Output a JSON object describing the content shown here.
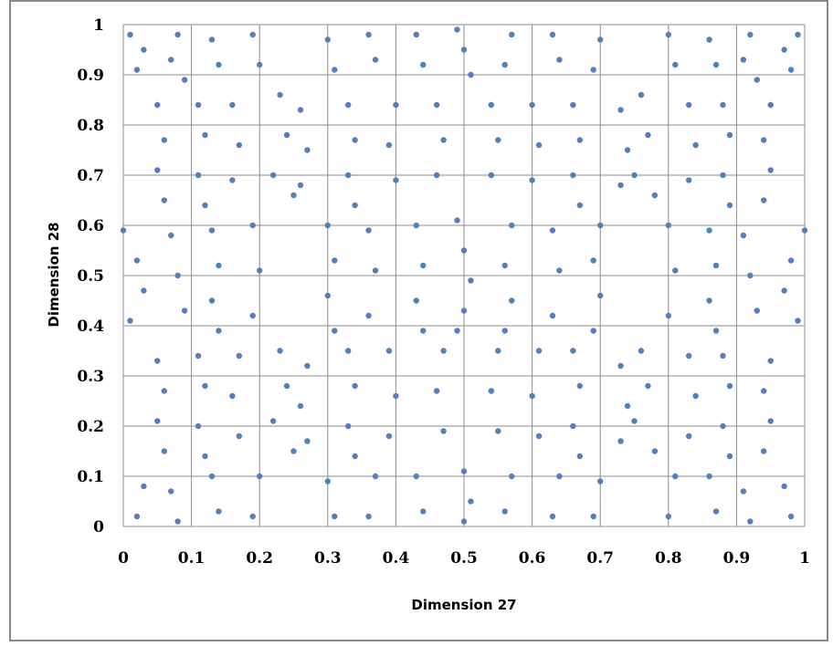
{
  "chart_data": {
    "type": "scatter",
    "title": "",
    "xlabel": "Dimension  27",
    "ylabel": "Dimension 28",
    "xlim": [
      0,
      1
    ],
    "ylim": [
      0,
      1
    ],
    "xticks": [
      "0",
      "0.1",
      "0.2",
      "0.3",
      "0.4",
      "0.5",
      "0.6",
      "0.7",
      "0.8",
      "0.9",
      "1"
    ],
    "yticks": [
      "0",
      "0.1",
      "0.2",
      "0.3",
      "0.4",
      "0.5",
      "0.6",
      "0.7",
      "0.8",
      "0.9",
      "1"
    ],
    "grid": true,
    "legend": "none",
    "colors": {
      "point": "#4f81bd",
      "grid": "#8c8c8c",
      "frame": "#888888"
    },
    "series": [
      {
        "values_description_omitted": false,
        "points": [
          [
            0.01,
            0.98
          ],
          [
            0.03,
            0.95
          ],
          [
            0.02,
            0.91
          ],
          [
            0.0,
            0.59
          ],
          [
            0.02,
            0.53
          ],
          [
            0.03,
            0.47
          ],
          [
            0.01,
            0.41
          ],
          [
            0.02,
            0.02
          ],
          [
            0.03,
            0.08
          ],
          [
            0.05,
            0.84
          ],
          [
            0.06,
            0.77
          ],
          [
            0.05,
            0.71
          ],
          [
            0.06,
            0.65
          ],
          [
            0.05,
            0.33
          ],
          [
            0.06,
            0.27
          ],
          [
            0.05,
            0.21
          ],
          [
            0.06,
            0.15
          ],
          [
            0.08,
            0.98
          ],
          [
            0.07,
            0.93
          ],
          [
            0.09,
            0.89
          ],
          [
            0.07,
            0.58
          ],
          [
            0.08,
            0.5
          ],
          [
            0.09,
            0.43
          ],
          [
            0.07,
            0.07
          ],
          [
            0.08,
            0.01
          ],
          [
            0.11,
            0.84
          ],
          [
            0.12,
            0.78
          ],
          [
            0.11,
            0.7
          ],
          [
            0.12,
            0.64
          ],
          [
            0.11,
            0.34
          ],
          [
            0.12,
            0.28
          ],
          [
            0.11,
            0.2
          ],
          [
            0.12,
            0.14
          ],
          [
            0.13,
            0.97
          ],
          [
            0.14,
            0.92
          ],
          [
            0.13,
            0.59
          ],
          [
            0.14,
            0.52
          ],
          [
            0.13,
            0.45
          ],
          [
            0.14,
            0.39
          ],
          [
            0.13,
            0.1
          ],
          [
            0.14,
            0.03
          ],
          [
            0.16,
            0.84
          ],
          [
            0.17,
            0.76
          ],
          [
            0.16,
            0.69
          ],
          [
            0.17,
            0.34
          ],
          [
            0.16,
            0.26
          ],
          [
            0.17,
            0.18
          ],
          [
            0.19,
            0.98
          ],
          [
            0.2,
            0.92
          ],
          [
            0.19,
            0.6
          ],
          [
            0.2,
            0.51
          ],
          [
            0.19,
            0.42
          ],
          [
            0.2,
            0.1
          ],
          [
            0.19,
            0.02
          ],
          [
            0.23,
            0.86
          ],
          [
            0.24,
            0.78
          ],
          [
            0.22,
            0.7
          ],
          [
            0.25,
            0.66
          ],
          [
            0.23,
            0.35
          ],
          [
            0.24,
            0.28
          ],
          [
            0.22,
            0.21
          ],
          [
            0.25,
            0.15
          ],
          [
            0.26,
            0.83
          ],
          [
            0.27,
            0.75
          ],
          [
            0.26,
            0.68
          ],
          [
            0.27,
            0.32
          ],
          [
            0.26,
            0.24
          ],
          [
            0.27,
            0.17
          ],
          [
            0.3,
            0.97
          ],
          [
            0.31,
            0.91
          ],
          [
            0.3,
            0.6
          ],
          [
            0.31,
            0.53
          ],
          [
            0.3,
            0.46
          ],
          [
            0.31,
            0.39
          ],
          [
            0.3,
            0.09
          ],
          [
            0.31,
            0.02
          ],
          [
            0.33,
            0.84
          ],
          [
            0.34,
            0.77
          ],
          [
            0.33,
            0.7
          ],
          [
            0.34,
            0.64
          ],
          [
            0.33,
            0.35
          ],
          [
            0.34,
            0.28
          ],
          [
            0.33,
            0.2
          ],
          [
            0.34,
            0.14
          ],
          [
            0.36,
            0.98
          ],
          [
            0.37,
            0.93
          ],
          [
            0.36,
            0.59
          ],
          [
            0.37,
            0.51
          ],
          [
            0.36,
            0.42
          ],
          [
            0.37,
            0.1
          ],
          [
            0.36,
            0.02
          ],
          [
            0.4,
            0.84
          ],
          [
            0.39,
            0.76
          ],
          [
            0.4,
            0.69
          ],
          [
            0.39,
            0.35
          ],
          [
            0.4,
            0.26
          ],
          [
            0.39,
            0.18
          ],
          [
            0.43,
            0.98
          ],
          [
            0.44,
            0.92
          ],
          [
            0.43,
            0.6
          ],
          [
            0.44,
            0.52
          ],
          [
            0.43,
            0.45
          ],
          [
            0.44,
            0.39
          ],
          [
            0.43,
            0.1
          ],
          [
            0.44,
            0.03
          ],
          [
            0.46,
            0.84
          ],
          [
            0.47,
            0.77
          ],
          [
            0.46,
            0.7
          ],
          [
            0.47,
            0.35
          ],
          [
            0.46,
            0.27
          ],
          [
            0.47,
            0.19
          ],
          [
            0.49,
            0.99
          ],
          [
            0.5,
            0.95
          ],
          [
            0.51,
            0.9
          ],
          [
            0.49,
            0.61
          ],
          [
            0.5,
            0.55
          ],
          [
            0.51,
            0.49
          ],
          [
            0.5,
            0.43
          ],
          [
            0.49,
            0.39
          ],
          [
            0.5,
            0.11
          ],
          [
            0.51,
            0.05
          ],
          [
            0.5,
            0.01
          ],
          [
            0.54,
            0.84
          ],
          [
            0.55,
            0.77
          ],
          [
            0.54,
            0.7
          ],
          [
            0.55,
            0.35
          ],
          [
            0.54,
            0.27
          ],
          [
            0.55,
            0.19
          ],
          [
            0.57,
            0.98
          ],
          [
            0.56,
            0.92
          ],
          [
            0.57,
            0.6
          ],
          [
            0.56,
            0.52
          ],
          [
            0.57,
            0.45
          ],
          [
            0.56,
            0.39
          ],
          [
            0.57,
            0.1
          ],
          [
            0.56,
            0.03
          ],
          [
            0.6,
            0.84
          ],
          [
            0.61,
            0.76
          ],
          [
            0.6,
            0.69
          ],
          [
            0.61,
            0.35
          ],
          [
            0.6,
            0.26
          ],
          [
            0.61,
            0.18
          ],
          [
            0.63,
            0.98
          ],
          [
            0.64,
            0.93
          ],
          [
            0.63,
            0.59
          ],
          [
            0.64,
            0.51
          ],
          [
            0.63,
            0.42
          ],
          [
            0.64,
            0.1
          ],
          [
            0.63,
            0.02
          ],
          [
            0.66,
            0.84
          ],
          [
            0.67,
            0.77
          ],
          [
            0.66,
            0.7
          ],
          [
            0.67,
            0.64
          ],
          [
            0.66,
            0.35
          ],
          [
            0.67,
            0.28
          ],
          [
            0.66,
            0.2
          ],
          [
            0.67,
            0.14
          ],
          [
            0.7,
            0.97
          ],
          [
            0.69,
            0.91
          ],
          [
            0.7,
            0.6
          ],
          [
            0.69,
            0.53
          ],
          [
            0.7,
            0.46
          ],
          [
            0.69,
            0.39
          ],
          [
            0.7,
            0.09
          ],
          [
            0.69,
            0.02
          ],
          [
            0.73,
            0.83
          ],
          [
            0.74,
            0.75
          ],
          [
            0.73,
            0.68
          ],
          [
            0.73,
            0.32
          ],
          [
            0.74,
            0.24
          ],
          [
            0.73,
            0.17
          ],
          [
            0.76,
            0.86
          ],
          [
            0.77,
            0.78
          ],
          [
            0.75,
            0.7
          ],
          [
            0.78,
            0.66
          ],
          [
            0.76,
            0.35
          ],
          [
            0.77,
            0.28
          ],
          [
            0.75,
            0.21
          ],
          [
            0.78,
            0.15
          ],
          [
            0.8,
            0.98
          ],
          [
            0.81,
            0.92
          ],
          [
            0.8,
            0.6
          ],
          [
            0.81,
            0.51
          ],
          [
            0.8,
            0.42
          ],
          [
            0.81,
            0.1
          ],
          [
            0.8,
            0.02
          ],
          [
            0.83,
            0.84
          ],
          [
            0.84,
            0.76
          ],
          [
            0.83,
            0.69
          ],
          [
            0.83,
            0.34
          ],
          [
            0.84,
            0.26
          ],
          [
            0.83,
            0.18
          ],
          [
            0.86,
            0.97
          ],
          [
            0.87,
            0.92
          ],
          [
            0.86,
            0.59
          ],
          [
            0.87,
            0.52
          ],
          [
            0.86,
            0.45
          ],
          [
            0.87,
            0.39
          ],
          [
            0.86,
            0.1
          ],
          [
            0.87,
            0.03
          ],
          [
            0.88,
            0.84
          ],
          [
            0.89,
            0.78
          ],
          [
            0.88,
            0.7
          ],
          [
            0.89,
            0.64
          ],
          [
            0.88,
            0.34
          ],
          [
            0.89,
            0.28
          ],
          [
            0.88,
            0.2
          ],
          [
            0.89,
            0.14
          ],
          [
            0.92,
            0.98
          ],
          [
            0.91,
            0.93
          ],
          [
            0.93,
            0.89
          ],
          [
            0.91,
            0.58
          ],
          [
            0.92,
            0.5
          ],
          [
            0.93,
            0.43
          ],
          [
            0.91,
            0.07
          ],
          [
            0.92,
            0.01
          ],
          [
            0.95,
            0.84
          ],
          [
            0.94,
            0.77
          ],
          [
            0.95,
            0.71
          ],
          [
            0.94,
            0.65
          ],
          [
            0.95,
            0.33
          ],
          [
            0.94,
            0.27
          ],
          [
            0.95,
            0.21
          ],
          [
            0.94,
            0.15
          ],
          [
            0.99,
            0.98
          ],
          [
            0.97,
            0.95
          ],
          [
            0.98,
            0.91
          ],
          [
            1.0,
            0.59
          ],
          [
            0.98,
            0.53
          ],
          [
            0.97,
            0.47
          ],
          [
            0.99,
            0.41
          ],
          [
            0.98,
            0.02
          ],
          [
            0.97,
            0.08
          ]
        ]
      }
    ]
  }
}
